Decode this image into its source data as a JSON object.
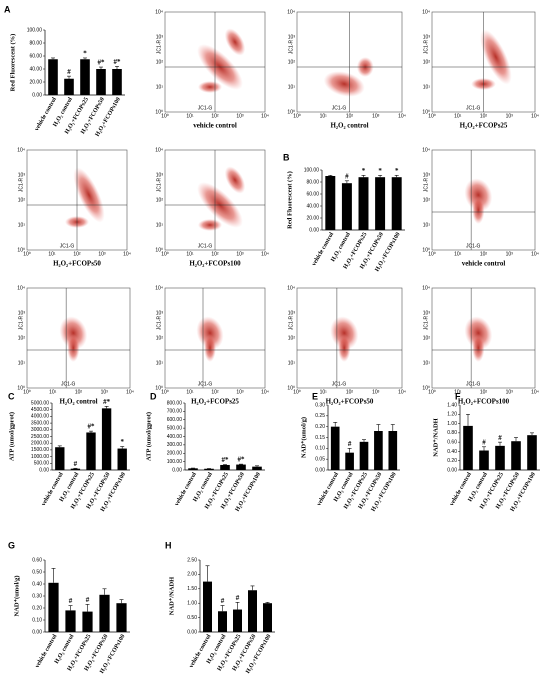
{
  "chart_data": [
    {
      "type": "bar",
      "label": "A",
      "y_label": "Red Fluorescent (%)",
      "categories": [
        "vehicle control",
        "H₂O₂ control",
        "H₂O₂+FCOPs25",
        "H₂O₂+FCOPs50",
        "H₂O₂+FCOPs100"
      ],
      "values": [
        55,
        25,
        55,
        40,
        40
      ],
      "errors": [
        2,
        4,
        2,
        3,
        4
      ],
      "annotations": [
        null,
        "#",
        "*",
        "#*",
        "#*"
      ],
      "color": "#000000",
      "ylim": [
        0,
        100
      ],
      "yticks": [
        {
          "value": 0,
          "label": "0.00"
        },
        {
          "value": 20,
          "label": "20.00"
        },
        {
          "value": 40,
          "label": "40.00"
        },
        {
          "value": 60,
          "label": "60.00"
        },
        {
          "value": 80,
          "label": "80.00"
        },
        {
          "value": 100,
          "label": "100.00"
        }
      ]
    },
    {
      "type": "bar",
      "label": "B",
      "y_label": "Red Fluorescent (%)",
      "categories": [
        "vehicle control",
        "H₂O₂ control",
        "H₂O₂+FCOPs25",
        "H₂O₂+FCOPs50",
        "H₂O₂+FCOPs100"
      ],
      "values": [
        90,
        78,
        88,
        88,
        88
      ],
      "errors": [
        1,
        4,
        3,
        3,
        3
      ],
      "annotations": [
        null,
        "#",
        "*",
        "*",
        "*"
      ],
      "color": "#000000",
      "ylim": [
        0,
        100
      ],
      "yticks": [
        {
          "value": 0,
          "label": "0.00"
        },
        {
          "value": 20,
          "label": "20.00"
        },
        {
          "value": 40,
          "label": "40.00"
        },
        {
          "value": 60,
          "label": "60.00"
        },
        {
          "value": 80,
          "label": "80.00"
        },
        {
          "value": 100,
          "label": "100.00"
        }
      ]
    },
    {
      "type": "bar",
      "label": "C",
      "y_label": "ATP (umol/gprot)",
      "categories": [
        "vehicle control",
        "H₂O₂ control",
        "H₂O₂+FCOPs25",
        "H₂O₂+FCOPs50",
        "H₂O₂+FCOPs100"
      ],
      "values": [
        1700,
        100,
        2800,
        4600,
        1600
      ],
      "errors": [
        100,
        30,
        100,
        150,
        150
      ],
      "annotations": [
        null,
        "#",
        "#*",
        "#*",
        "*"
      ],
      "color": "#000000",
      "ylim": [
        0,
        5000
      ],
      "yticks": [
        {
          "value": 0,
          "label": "0.00"
        },
        {
          "value": 500,
          "label": "500.00"
        },
        {
          "value": 1000,
          "label": "1000.00"
        },
        {
          "value": 1500,
          "label": "1500.00"
        },
        {
          "value": 2000,
          "label": "2000.00"
        },
        {
          "value": 2500,
          "label": "2500.00"
        },
        {
          "value": 3000,
          "label": "3000.00"
        },
        {
          "value": 3500,
          "label": "3500.00"
        },
        {
          "value": 4000,
          "label": "4000.00"
        },
        {
          "value": 4500,
          "label": "4500.00"
        },
        {
          "value": 5000,
          "label": "5000.00"
        }
      ]
    },
    {
      "type": "bar",
      "label": "D",
      "y_label": "ATP (umol/gprot)",
      "categories": [
        "vehicle control",
        "H₂O₂ control",
        "H₂O₂+FCOPs25",
        "H₂O₂+FCOPs50",
        "H₂O₂+FCOPs100"
      ],
      "values": [
        20,
        15,
        60,
        65,
        40
      ],
      "errors": [
        3,
        3,
        5,
        5,
        10
      ],
      "annotations": [
        null,
        null,
        "#*",
        "#*",
        null
      ],
      "color": "#000000",
      "ylim": [
        0,
        800
      ],
      "yticks": [
        {
          "value": 0,
          "label": "0.00"
        },
        {
          "value": 100,
          "label": "100.00"
        },
        {
          "value": 200,
          "label": "200.00"
        },
        {
          "value": 300,
          "label": "300.00"
        },
        {
          "value": 400,
          "label": "400.00"
        },
        {
          "value": 500,
          "label": "500.00"
        },
        {
          "value": 600,
          "label": "600.00"
        },
        {
          "value": 700,
          "label": "700.00"
        },
        {
          "value": 800,
          "label": "800.00"
        }
      ]
    },
    {
      "type": "bar",
      "label": "E",
      "y_label": "NAD⁺(umol/g)",
      "categories": [
        "vehicle control",
        "H₂O₂ control",
        "H₂O₂+FCOPs25",
        "H₂O₂+FCOPs50",
        "H₂O₂+FCOPs100"
      ],
      "values": [
        0.2,
        0.08,
        0.13,
        0.18,
        0.18
      ],
      "errors": [
        0.02,
        0.02,
        0.01,
        0.03,
        0.03
      ],
      "annotations": [
        null,
        "#",
        null,
        null,
        null
      ],
      "color": "#000000",
      "ylim": [
        0,
        0.3
      ],
      "yticks": [
        {
          "value": 0,
          "label": "0.00"
        },
        {
          "value": 0.05,
          "label": "0.05"
        },
        {
          "value": 0.1,
          "label": "0.10"
        },
        {
          "value": 0.15,
          "label": "0.15"
        },
        {
          "value": 0.2,
          "label": "0.20"
        },
        {
          "value": 0.25,
          "label": "0.25"
        },
        {
          "value": 0.3,
          "label": "0.30"
        }
      ]
    },
    {
      "type": "bar",
      "label": "F",
      "y_label": "NAD⁺/NADH",
      "categories": [
        "vehicle control",
        "H₂O₂ control",
        "H₂O₂+FCOPs25",
        "H₂O₂+FCOPs50",
        "H₂O₂+FCOPs100"
      ],
      "values": [
        0.95,
        0.42,
        0.52,
        0.62,
        0.75
      ],
      "errors": [
        0.25,
        0.08,
        0.08,
        0.08,
        0.05
      ],
      "annotations": [
        null,
        "#",
        "#",
        null,
        null
      ],
      "color": "#000000",
      "ylim": [
        0,
        1.4
      ],
      "yticks": [
        {
          "value": 0,
          "label": "0.00"
        },
        {
          "value": 0.2,
          "label": "0.20"
        },
        {
          "value": 0.4,
          "label": "0.40"
        },
        {
          "value": 0.6,
          "label": "0.60"
        },
        {
          "value": 0.8,
          "label": "0.80"
        },
        {
          "value": 1,
          "label": "1.00"
        },
        {
          "value": 1.2,
          "label": "1.20"
        },
        {
          "value": 1.4,
          "label": "1.40"
        }
      ]
    },
    {
      "type": "bar",
      "label": "G",
      "y_label": "NAD⁺(umol/g)",
      "categories": [
        "vehicle control",
        "H₂O₂ control",
        "H₂O₂+FCOPs25",
        "H₂O₂+FCOPs50",
        "H₂O₂+FCOPs100"
      ],
      "values": [
        0.41,
        0.18,
        0.17,
        0.31,
        0.24
      ],
      "errors": [
        0.12,
        0.04,
        0.06,
        0.05,
        0.03
      ],
      "annotations": [
        null,
        "#",
        "#",
        null,
        null
      ],
      "color": "#000000",
      "ylim": [
        0,
        0.6
      ],
      "yticks": [
        {
          "value": 0,
          "label": "0.00"
        },
        {
          "value": 0.1,
          "label": "0.10"
        },
        {
          "value": 0.2,
          "label": "0.20"
        },
        {
          "value": 0.3,
          "label": "0.30"
        },
        {
          "value": 0.4,
          "label": "0.40"
        },
        {
          "value": 0.5,
          "label": "0.50"
        },
        {
          "value": 0.6,
          "label": "0.60"
        }
      ]
    },
    {
      "type": "bar",
      "label": "H",
      "y_label": "NAD⁺/NADH",
      "categories": [
        "vehicle control",
        "H₂O₂ control",
        "H₂O₂+FCOPs25",
        "H₂O₂+FCOPs50",
        "H₂O₂+FCOPs100"
      ],
      "values": [
        1.75,
        0.72,
        0.78,
        1.45,
        1.0
      ],
      "errors": [
        0.55,
        0.2,
        0.25,
        0.15,
        0.03
      ],
      "annotations": [
        null,
        "#",
        "#",
        null,
        null
      ],
      "color": "#000000",
      "ylim": [
        0,
        2.5
      ],
      "yticks": [
        {
          "value": 0,
          "label": "0.00"
        },
        {
          "value": 0.5,
          "label": "0.50"
        },
        {
          "value": 1,
          "label": "1.00"
        },
        {
          "value": 1.5,
          "label": "1.50"
        },
        {
          "value": 2,
          "label": "2.00"
        },
        {
          "value": 2.5,
          "label": "2.50"
        }
      ]
    }
  ],
  "flow_plots": {
    "x_label": "JC1-G",
    "y_label": "JC1-R",
    "ticks": [
      "10⁰",
      "10¹",
      "10²",
      "10³",
      "10⁴"
    ],
    "captions": [
      "vehicle control",
      "H₂O₂ control",
      "H₂O₂+FCOPs25",
      "H₂O₂+FCOPs50",
      "H₂O₂+FCOPs100",
      "vehicle control",
      "H₂O₂ control",
      "H₂O₂+FCOPs25",
      "H₂O₂+FCOPs50",
      "H₂O₂+FCOPs100"
    ]
  }
}
